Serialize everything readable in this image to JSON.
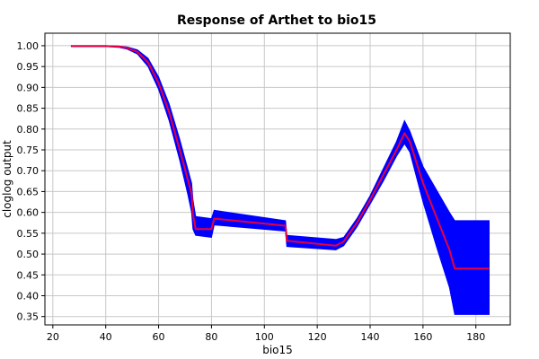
{
  "chart_data": {
    "type": "line",
    "title": "Response of Arthet to bio15",
    "xlabel": "bio15",
    "ylabel": "cloglog output",
    "xlim": [
      17,
      193
    ],
    "ylim": [
      0.33,
      1.03
    ],
    "xticks": [
      20,
      40,
      60,
      80,
      100,
      120,
      140,
      160,
      180
    ],
    "yticks": [
      0.35,
      0.4,
      0.45,
      0.5,
      0.55,
      0.6,
      0.65,
      0.7,
      0.75,
      0.8,
      0.85,
      0.9,
      0.95,
      1.0
    ],
    "grid": true,
    "legend": "none",
    "series": [
      {
        "role": "mean response",
        "color": "#e8003c",
        "x": [
          27,
          40,
          45,
          48,
          52,
          56,
          60,
          64,
          68,
          71,
          72.5,
          73,
          74,
          80,
          81,
          108,
          108.5,
          127,
          130,
          135,
          140,
          145,
          150,
          153,
          155,
          160,
          165,
          170,
          172,
          185
        ],
        "y": [
          0.999,
          0.999,
          0.998,
          0.995,
          0.985,
          0.96,
          0.91,
          0.84,
          0.75,
          0.68,
          0.645,
          0.595,
          0.56,
          0.56,
          0.585,
          0.568,
          0.532,
          0.52,
          0.53,
          0.575,
          0.63,
          0.69,
          0.75,
          0.79,
          0.77,
          0.67,
          0.59,
          0.51,
          0.465,
          0.465
        ]
      },
      {
        "role": "variability band",
        "color": "#0000ff",
        "x": [
          27,
          40,
          45,
          48,
          52,
          56,
          60,
          64,
          68,
          71,
          72.5,
          73,
          74,
          80,
          81,
          108,
          108.5,
          127,
          130,
          135,
          140,
          145,
          150,
          153,
          155,
          160,
          165,
          170,
          172,
          185
        ],
        "lower": [
          0.998,
          0.998,
          0.996,
          0.992,
          0.98,
          0.95,
          0.895,
          0.82,
          0.725,
          0.645,
          0.6,
          0.56,
          0.545,
          0.54,
          0.57,
          0.555,
          0.518,
          0.51,
          0.52,
          0.565,
          0.62,
          0.675,
          0.735,
          0.765,
          0.745,
          0.625,
          0.52,
          0.42,
          0.355,
          0.355
        ],
        "upper": [
          1.0,
          1.0,
          0.999,
          0.997,
          0.99,
          0.97,
          0.925,
          0.86,
          0.775,
          0.705,
          0.67,
          0.63,
          0.59,
          0.585,
          0.605,
          0.58,
          0.545,
          0.535,
          0.54,
          0.585,
          0.64,
          0.705,
          0.77,
          0.82,
          0.795,
          0.71,
          0.655,
          0.6,
          0.58,
          0.58
        ]
      }
    ]
  }
}
